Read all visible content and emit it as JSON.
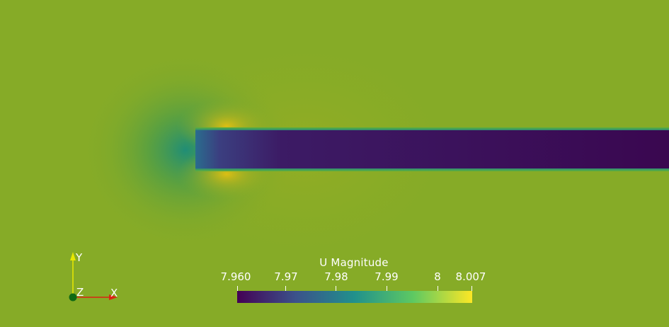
{
  "colorbar": {
    "title": "U Magnitude",
    "ticks": [
      "7.960",
      "7.97",
      "7.98",
      "7.99",
      "8",
      "8.007"
    ],
    "colormap": [
      "#440154",
      "#3b528b",
      "#21918c",
      "#5ec962",
      "#fde725"
    ]
  },
  "axes": {
    "x_label": "X",
    "y_label": "Y",
    "z_label": "Z",
    "x_color": "#d92414",
    "y_color": "#e8e800",
    "z_color": "#0f6a14"
  },
  "field": {
    "background_color": "#86ab27",
    "wake_color": "#3a0750",
    "low_lobe_color": "#1f8a7a",
    "high_lobe_color": "#d9b514"
  }
}
